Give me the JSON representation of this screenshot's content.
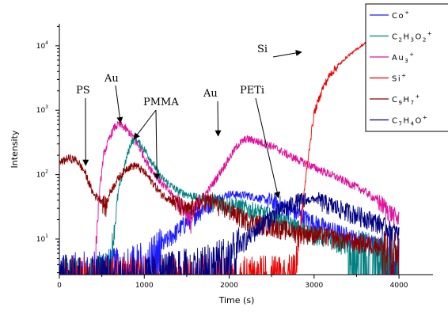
{
  "chart_data": {
    "type": "line",
    "title": "",
    "xlabel": "Time (s)",
    "ylabel": "Intensity",
    "xlim": [
      0,
      4400
    ],
    "ylim": [
      2.8,
      22000
    ],
    "yscale": "log",
    "grid": false,
    "legend_position": "top-right",
    "x_ticks": [
      {
        "value": 0,
        "label": "0"
      },
      {
        "value": 1000,
        "label": "1000"
      },
      {
        "value": 2000,
        "label": "2000"
      },
      {
        "value": 3000,
        "label": "3000"
      },
      {
        "value": 4000,
        "label": "4000"
      }
    ],
    "y_ticks": [
      {
        "value": 10,
        "mant": "10",
        "exp": "1"
      },
      {
        "value": 100,
        "mant": "10",
        "exp": "2"
      },
      {
        "value": 1000,
        "mant": "10",
        "exp": "3"
      },
      {
        "value": 10000,
        "mant": "10",
        "exp": "4"
      }
    ],
    "series": [
      {
        "name": "Co⁺",
        "legend": {
          "base": "Co",
          "parts": [
            [
              "+",
              "sup"
            ]
          ]
        },
        "color": "#1a1aff",
        "points": [
          [
            0,
            3
          ],
          [
            300,
            3.5
          ],
          [
            800,
            4
          ],
          [
            1000,
            5
          ],
          [
            1200,
            8
          ],
          [
            1400,
            14
          ],
          [
            1600,
            25
          ],
          [
            1800,
            40
          ],
          [
            2000,
            50
          ],
          [
            2200,
            48
          ],
          [
            2400,
            42
          ],
          [
            2600,
            35
          ],
          [
            2800,
            25
          ],
          [
            3000,
            18
          ],
          [
            3200,
            14
          ],
          [
            3500,
            10
          ],
          [
            3800,
            8
          ],
          [
            4000,
            6
          ]
        ]
      },
      {
        "name": "C₂H₃O₂⁺",
        "legend": {
          "base": "C",
          "parts": [
            [
              "2",
              "sub"
            ],
            [
              "H",
              "base"
            ],
            [
              "3",
              "sub"
            ],
            [
              "O",
              "base"
            ],
            [
              "2",
              "sub"
            ],
            [
              "+",
              "sup"
            ]
          ]
        },
        "color": "#008080",
        "points": [
          [
            0,
            2.9
          ],
          [
            500,
            3
          ],
          [
            600,
            4
          ],
          [
            700,
            60
          ],
          [
            800,
            200
          ],
          [
            850,
            330
          ],
          [
            900,
            350
          ],
          [
            1000,
            250
          ],
          [
            1100,
            150
          ],
          [
            1200,
            90
          ],
          [
            1400,
            55
          ],
          [
            1600,
            45
          ],
          [
            1800,
            40
          ],
          [
            2000,
            35
          ],
          [
            2200,
            30
          ],
          [
            2400,
            25
          ],
          [
            2600,
            20
          ],
          [
            2800,
            15
          ],
          [
            3000,
            12
          ],
          [
            3200,
            10
          ],
          [
            3400,
            8
          ],
          [
            3600,
            7
          ],
          [
            3800,
            6
          ],
          [
            4000,
            5
          ]
        ]
      },
      {
        "name": "Au₃⁺",
        "legend": {
          "base": "Au",
          "parts": [
            [
              "3",
              "sub"
            ],
            [
              "+",
              "sup"
            ]
          ]
        },
        "color": "#e0109a",
        "points": [
          [
            380,
            2.9
          ],
          [
            420,
            5
          ],
          [
            470,
            50
          ],
          [
            520,
            200
          ],
          [
            600,
            400
          ],
          [
            650,
            550
          ],
          [
            700,
            600
          ],
          [
            750,
            560
          ],
          [
            850,
            420
          ],
          [
            950,
            250
          ],
          [
            1050,
            140
          ],
          [
            1200,
            75
          ],
          [
            1400,
            38
          ],
          [
            1500,
            26
          ],
          [
            1550,
            18
          ],
          [
            1600,
            30
          ],
          [
            1800,
            70
          ],
          [
            2000,
            180
          ],
          [
            2100,
            290
          ],
          [
            2200,
            360
          ],
          [
            2300,
            340
          ],
          [
            2500,
            280
          ],
          [
            2700,
            200
          ],
          [
            3000,
            130
          ],
          [
            3200,
            100
          ],
          [
            3400,
            75
          ],
          [
            3600,
            55
          ],
          [
            3800,
            35
          ],
          [
            4000,
            20
          ]
        ]
      },
      {
        "name": "Si⁺",
        "legend": {
          "base": "Si",
          "parts": [
            [
              "+",
              "sup"
            ]
          ]
        },
        "color": "#ee0000",
        "points": [
          [
            0,
            2.9
          ],
          [
            1800,
            3
          ],
          [
            2700,
            3
          ],
          [
            2800,
            6
          ],
          [
            2880,
            50
          ],
          [
            2950,
            300
          ],
          [
            3000,
            900
          ],
          [
            3100,
            2200
          ],
          [
            3200,
            3800
          ],
          [
            3400,
            7000
          ],
          [
            3600,
            11000
          ],
          [
            3800,
            15000
          ],
          [
            4000,
            17500
          ],
          [
            4300,
            19000
          ]
        ]
      },
      {
        "name": "C₉H₇⁺",
        "legend": {
          "base": "C",
          "parts": [
            [
              "9",
              "sub"
            ],
            [
              "H",
              "base"
            ],
            [
              "7",
              "sub"
            ],
            [
              "+",
              "sup"
            ]
          ]
        },
        "color": "#8b0000",
        "points": [
          [
            0,
            150
          ],
          [
            100,
            180
          ],
          [
            200,
            170
          ],
          [
            300,
            110
          ],
          [
            400,
            50
          ],
          [
            500,
            40
          ],
          [
            550,
            32
          ],
          [
            600,
            55
          ],
          [
            700,
            90
          ],
          [
            800,
            130
          ],
          [
            900,
            140
          ],
          [
            1000,
            110
          ],
          [
            1100,
            75
          ],
          [
            1200,
            50
          ],
          [
            1400,
            35
          ],
          [
            1500,
            28
          ],
          [
            1600,
            32
          ],
          [
            1700,
            40
          ],
          [
            1800,
            38
          ],
          [
            2000,
            28
          ],
          [
            2200,
            20
          ],
          [
            2400,
            17
          ],
          [
            2600,
            15
          ],
          [
            2800,
            13
          ],
          [
            3000,
            12
          ],
          [
            3200,
            11
          ],
          [
            3500,
            9
          ],
          [
            3800,
            8
          ],
          [
            4000,
            7
          ]
        ]
      },
      {
        "name": "C₇H₄O⁺",
        "legend": {
          "base": "C",
          "parts": [
            [
              "7",
              "sub"
            ],
            [
              "H",
              "base"
            ],
            [
              "4",
              "sub"
            ],
            [
              "O",
              "base"
            ],
            [
              "+",
              "sup"
            ]
          ]
        },
        "color": "#000080",
        "points": [
          [
            0,
            3
          ],
          [
            1000,
            3
          ],
          [
            1600,
            4
          ],
          [
            2000,
            6
          ],
          [
            2200,
            10
          ],
          [
            2400,
            18
          ],
          [
            2600,
            28
          ],
          [
            2800,
            38
          ],
          [
            3000,
            42
          ],
          [
            3100,
            38
          ],
          [
            3300,
            30
          ],
          [
            3600,
            22
          ],
          [
            3800,
            17
          ],
          [
            4000,
            12
          ]
        ]
      }
    ],
    "annotations": [
      {
        "text": "PS",
        "target": [
          310,
          140
        ]
      },
      {
        "text": "Au",
        "target": [
          720,
          640
        ]
      },
      {
        "text": "PMMA",
        "target": [
          880,
          360
        ]
      },
      {
        "text": "PMMA",
        "target": [
          1150,
          85
        ]
      },
      {
        "text": "Au",
        "target": [
          1870,
          400
        ]
      },
      {
        "text": "PETi",
        "target": [
          2580,
          44
        ]
      },
      {
        "text": "Si",
        "target": [
          2850,
          8000
        ]
      }
    ]
  }
}
